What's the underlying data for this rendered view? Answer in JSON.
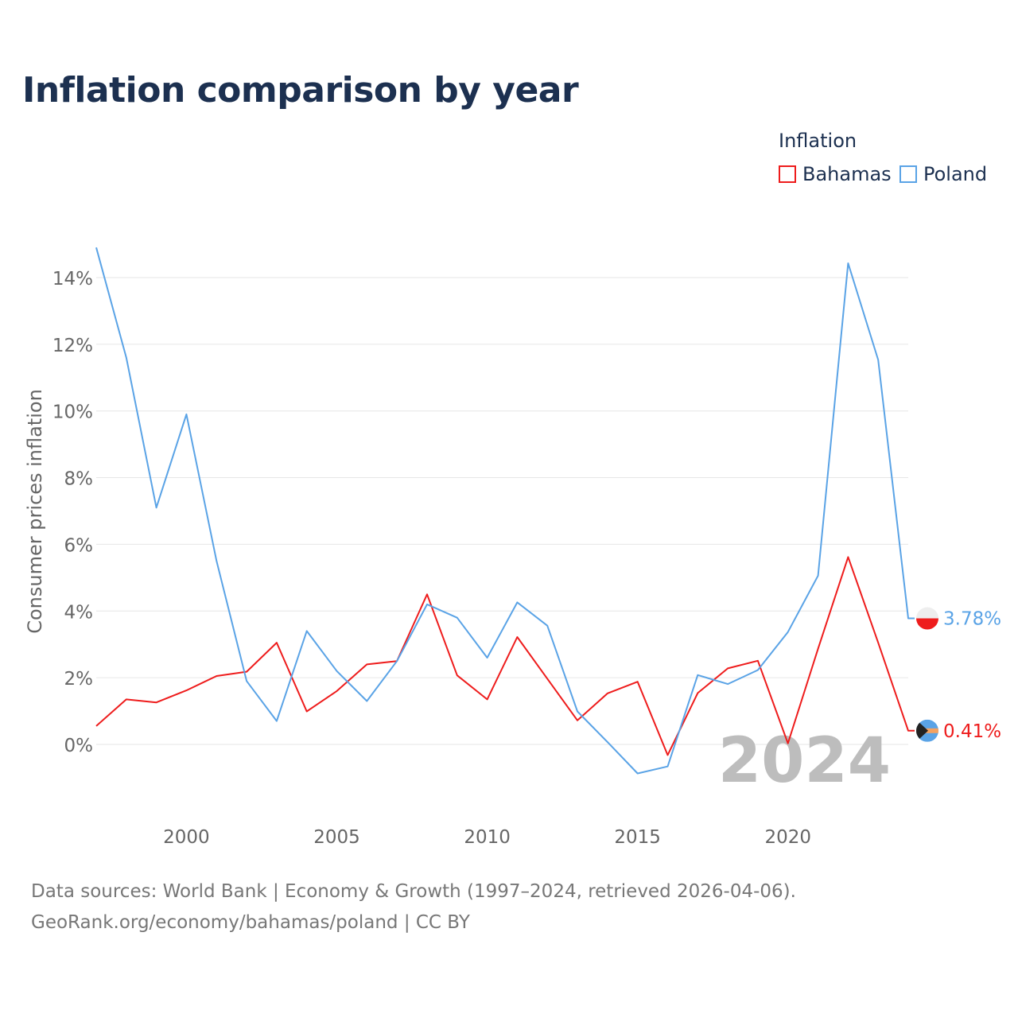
{
  "title": "Inflation comparison by year",
  "legend": {
    "title": "Inflation",
    "items": [
      {
        "label": "Bahamas",
        "color": "#ee1c1c"
      },
      {
        "label": "Poland",
        "color": "#5aa3e6"
      }
    ]
  },
  "year_watermark": "2024",
  "sources": {
    "line1": "Data sources: World Bank | Economy & Growth (1997–2024, retrieved 2026-04-06).",
    "line2": "GeoRank.org/economy/bahamas/poland | CC BY"
  },
  "chart_data": {
    "type": "line",
    "title": "Inflation comparison by year",
    "xlabel": "",
    "ylabel": "Consumer prices inflation",
    "xlim": [
      1997,
      2024
    ],
    "ylim": [
      -2.0,
      15.0
    ],
    "grid": true,
    "legend_position": "top-right",
    "x_ticks": [
      2000,
      2005,
      2010,
      2015,
      2020
    ],
    "x_tick_labels": [
      "2000",
      "2005",
      "2010",
      "2015",
      "2020"
    ],
    "y_ticks": [
      0,
      2,
      4,
      6,
      8,
      10,
      12,
      14
    ],
    "y_tick_labels": [
      "0%",
      "2%",
      "4%",
      "6%",
      "8%",
      "10%",
      "12%",
      "14%"
    ],
    "x": [
      1997,
      1998,
      1999,
      2000,
      2001,
      2002,
      2003,
      2004,
      2005,
      2006,
      2007,
      2008,
      2009,
      2010,
      2011,
      2012,
      2013,
      2014,
      2015,
      2016,
      2017,
      2018,
      2019,
      2020,
      2021,
      2022,
      2023,
      2024
    ],
    "series": [
      {
        "name": "Bahamas",
        "color": "#ee1c1c",
        "values": [
          0.55,
          1.35,
          1.26,
          1.62,
          2.05,
          2.18,
          3.05,
          0.99,
          1.6,
          2.4,
          2.5,
          4.5,
          2.07,
          1.35,
          3.22,
          1.97,
          0.72,
          1.53,
          1.88,
          -0.32,
          1.54,
          2.28,
          2.51,
          0.03,
          2.87,
          5.62,
          3.05,
          0.41
        ],
        "end_label": "0.41%"
      },
      {
        "name": "Poland",
        "color": "#5aa3e6",
        "values": [
          14.9,
          11.6,
          7.1,
          9.9,
          5.5,
          1.9,
          0.7,
          3.4,
          2.2,
          1.3,
          2.5,
          4.2,
          3.8,
          2.6,
          4.26,
          3.56,
          0.99,
          0.07,
          -0.87,
          -0.66,
          2.08,
          1.81,
          2.23,
          3.37,
          5.06,
          14.43,
          11.53,
          3.78
        ],
        "end_label": "3.78%"
      }
    ]
  }
}
